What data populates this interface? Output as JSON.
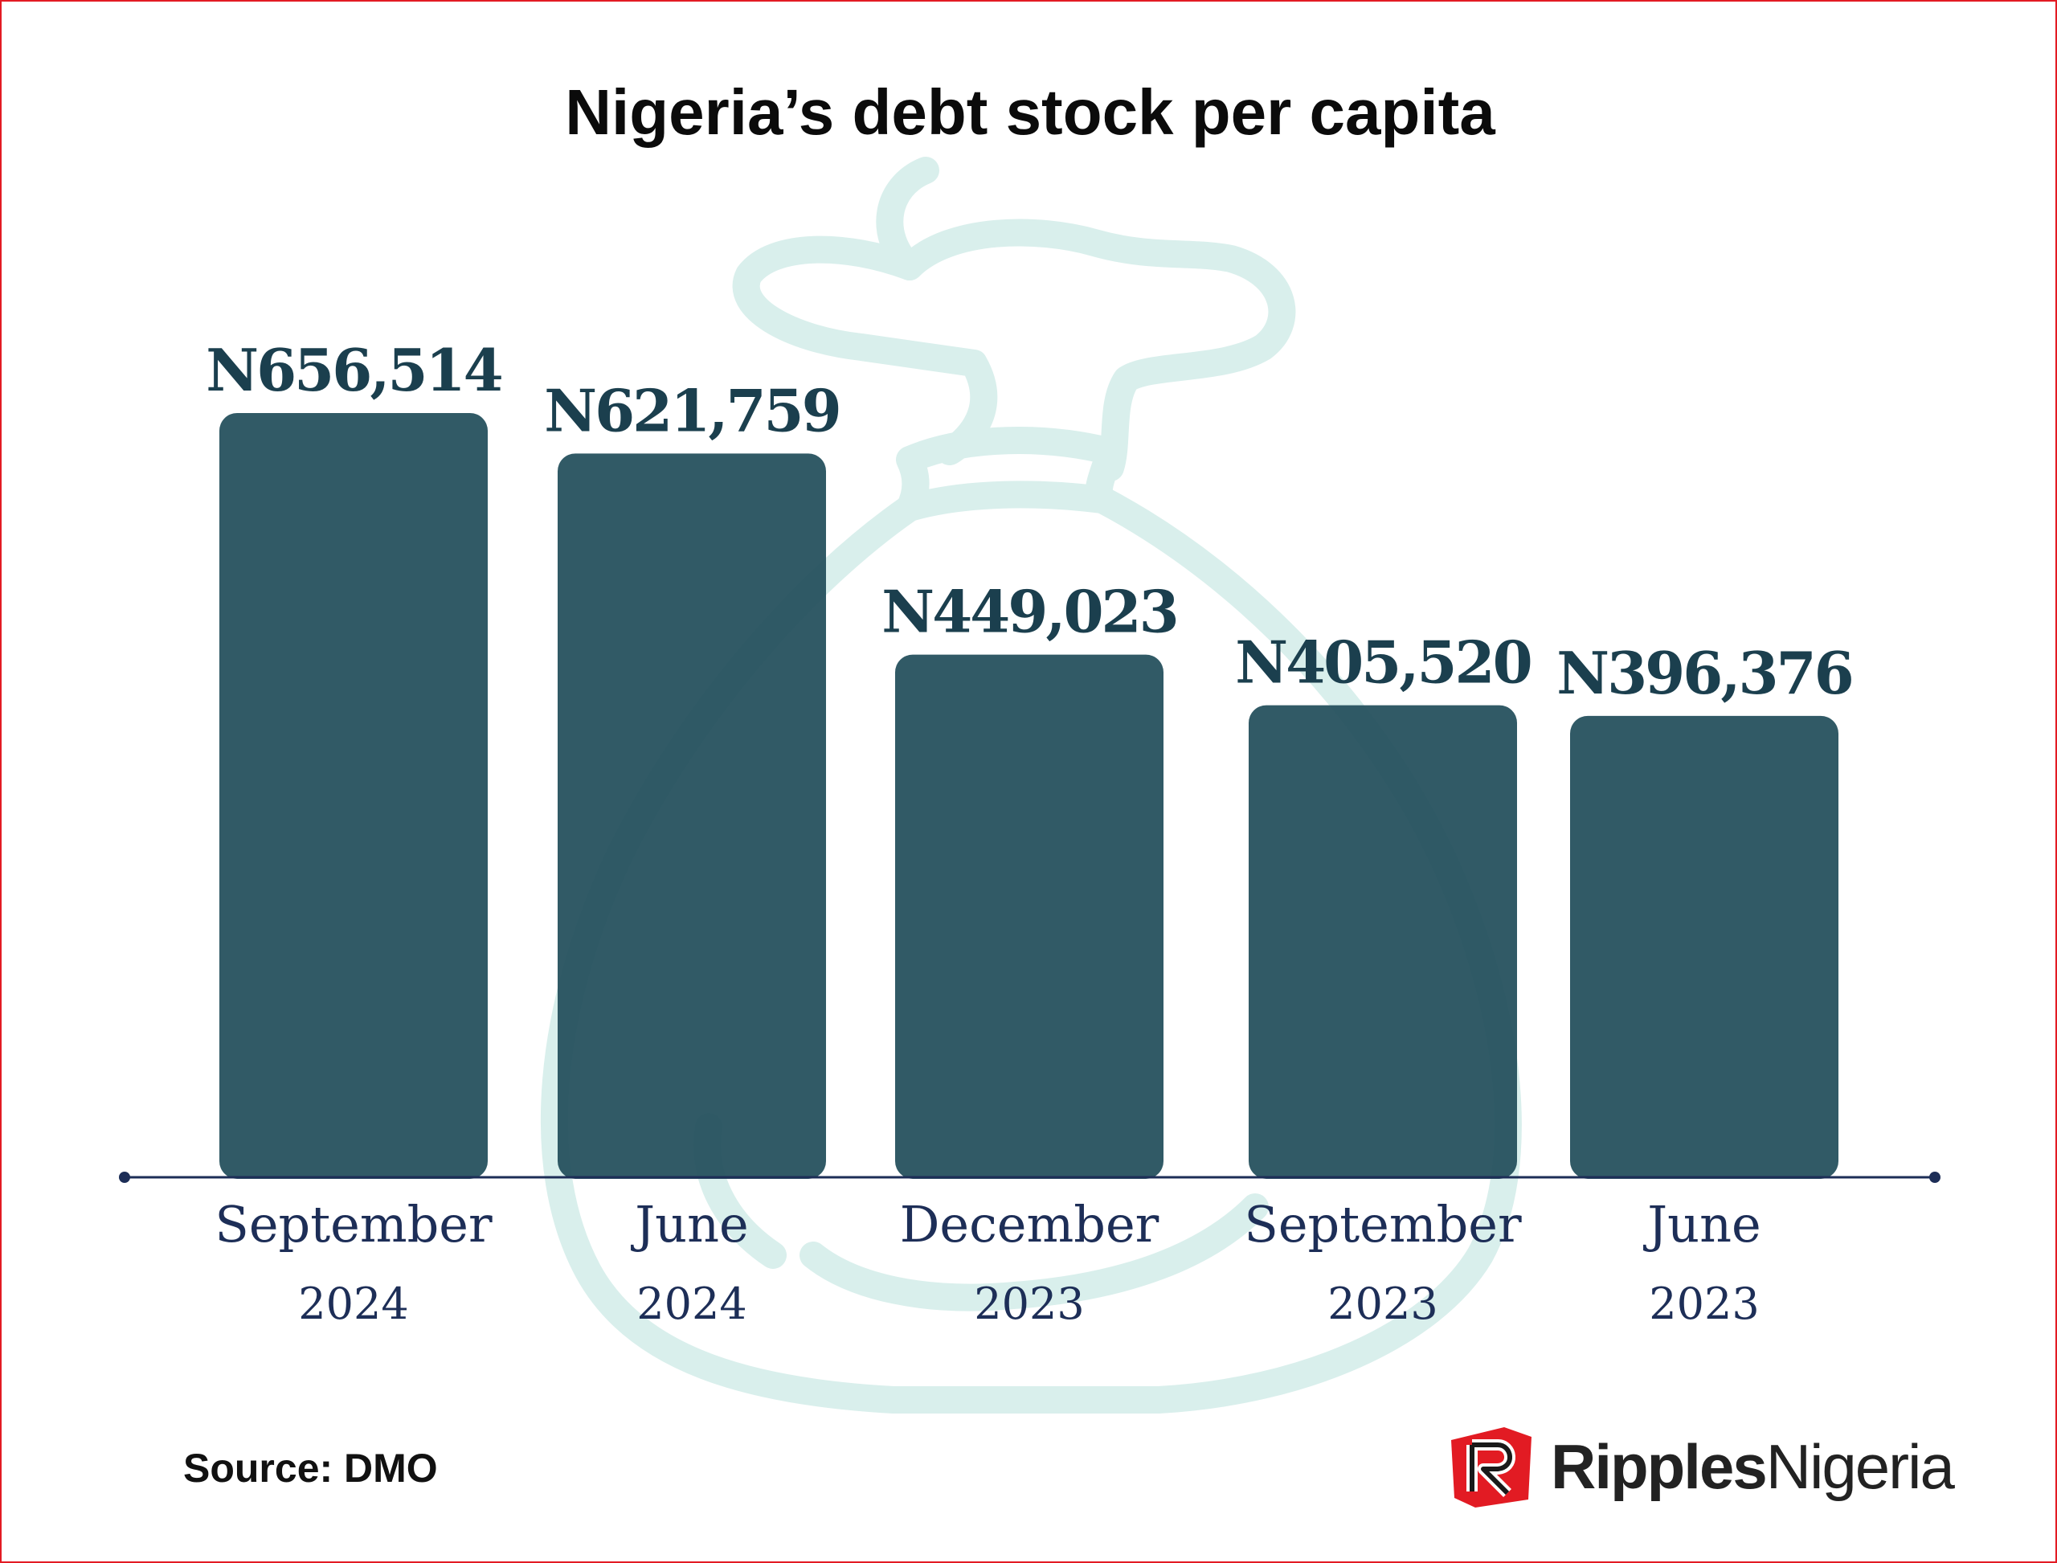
{
  "chart_data": {
    "type": "bar",
    "title": "Nigeria’s debt stock per capita",
    "categories": [
      {
        "month": "September",
        "year": "2024"
      },
      {
        "month": "June",
        "year": "2024"
      },
      {
        "month": "December",
        "year": "2023"
      },
      {
        "month": "September",
        "year": "2023"
      },
      {
        "month": "June",
        "year": "2023"
      }
    ],
    "values": [
      656514,
      621759,
      449023,
      405520,
      396376
    ],
    "data_labels": [
      "N656,514",
      "N621,759",
      "N449,023",
      "N405,520",
      "N396,376"
    ],
    "xlabel": "",
    "ylabel": "",
    "ylim": [
      0,
      656514
    ],
    "grid": false,
    "legend": "none",
    "bar_color": "#214d5a",
    "axis_color": "#1d2e57"
  },
  "source": "Source: DMO",
  "logo": {
    "brand_strong": "Ripples",
    "brand_light": "Nigeria",
    "mark_color": "#e21b23"
  },
  "watermark": {
    "icon": "money-bag-icon",
    "color": "#d9efec"
  }
}
